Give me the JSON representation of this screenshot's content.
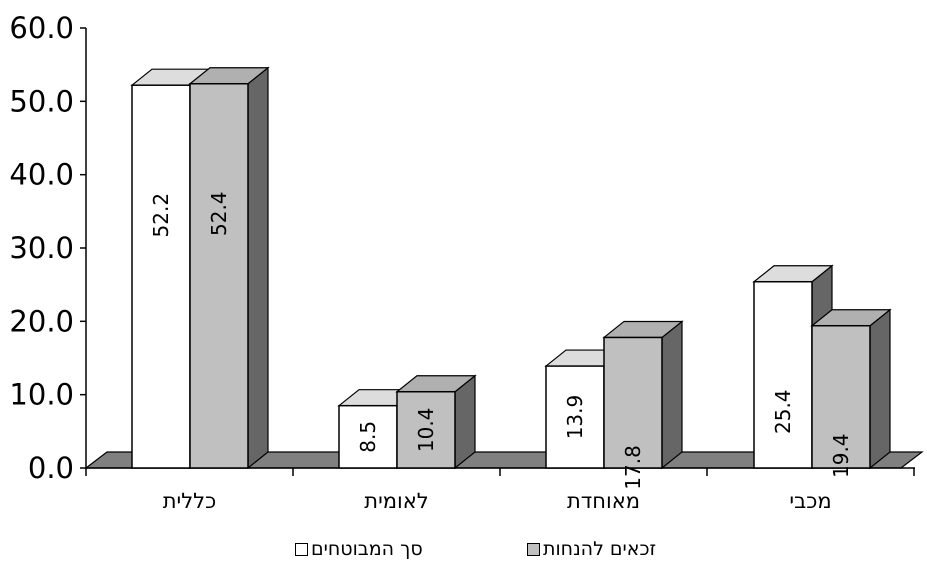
{
  "chart_data": {
    "type": "bar",
    "categories": [
      "כללית",
      "לאומית",
      "מאוחדת",
      "מכבי"
    ],
    "series": [
      {
        "name": "סך המבוטחים",
        "values": [
          52.2,
          8.5,
          13.9,
          25.4
        ],
        "color": "#ffffff"
      },
      {
        "name": "זכאים להנחות",
        "values": [
          52.4,
          10.4,
          17.8,
          19.4
        ],
        "color": "#c0c0c0"
      }
    ],
    "yticks": [
      "0.0",
      "10.0",
      "20.0",
      "30.0",
      "40.0",
      "50.0",
      "60.0"
    ],
    "ylim": [
      0,
      60
    ],
    "colors": {
      "floor": "#808080",
      "side": "#666666",
      "top_white": "#dddddd",
      "top_gray": "#b0b0b0"
    },
    "legend_position": "bottom"
  }
}
